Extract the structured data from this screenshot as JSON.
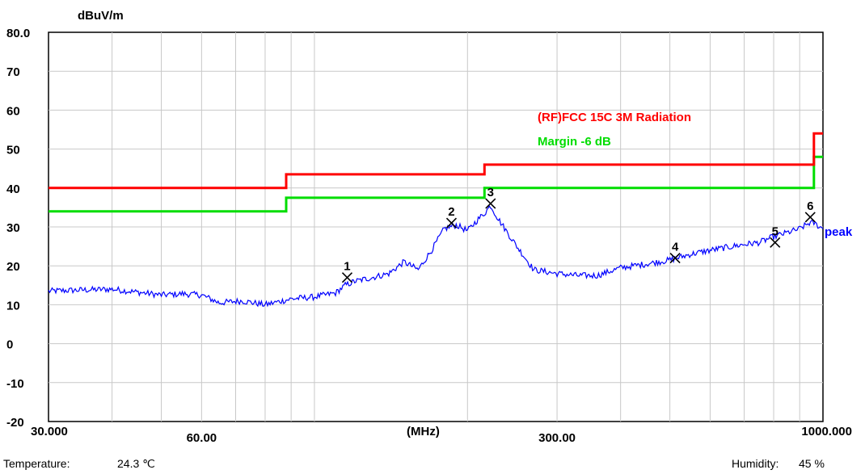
{
  "chart_data": {
    "type": "line",
    "title": "",
    "xlabel": "(MHz)",
    "ylabel": "dBuV/m",
    "x_scale": "log",
    "xlim": [
      30,
      1000
    ],
    "ylim": [
      -20,
      80
    ],
    "y_ticks": [
      "80.0",
      "70",
      "60",
      "50",
      "40",
      "30",
      "20",
      "10",
      "0",
      "-10",
      "-20"
    ],
    "x_ticks": [
      {
        "value": 30,
        "label": "30.000"
      },
      {
        "value": 60,
        "label": "60.00"
      },
      {
        "value": 300,
        "label": "300.00"
      },
      {
        "value": 1000,
        "label": "1000.000"
      }
    ],
    "x_gridlines": [
      40,
      50,
      60,
      70,
      80,
      90,
      100,
      200,
      300,
      400,
      500,
      600,
      700,
      800,
      900
    ],
    "grid": true,
    "limit_line": {
      "name": "(RF)FCC 15C 3M Radiation",
      "color": "#ff0000",
      "points": [
        [
          30,
          40
        ],
        [
          88,
          40
        ],
        [
          88,
          43.5
        ],
        [
          216,
          43.5
        ],
        [
          216,
          46
        ],
        [
          960,
          46
        ],
        [
          960,
          54
        ],
        [
          1000,
          54
        ]
      ]
    },
    "margin_line": {
      "name": "Margin -6 dB",
      "color": "#00dd00",
      "points": [
        [
          30,
          34
        ],
        [
          88,
          34
        ],
        [
          88,
          37.5
        ],
        [
          216,
          37.5
        ],
        [
          216,
          40
        ],
        [
          960,
          40
        ],
        [
          960,
          48
        ],
        [
          1000,
          48
        ]
      ]
    },
    "series": [
      {
        "name": "peak",
        "color": "#0000ff",
        "points": [
          [
            30,
            13.5
          ],
          [
            35,
            13.8
          ],
          [
            40,
            14
          ],
          [
            45,
            13.2
          ],
          [
            50,
            12.5
          ],
          [
            55,
            12.8
          ],
          [
            60,
            12.5
          ],
          [
            65,
            10.5
          ],
          [
            72,
            11
          ],
          [
            80,
            10
          ],
          [
            90,
            11.5
          ],
          [
            100,
            12
          ],
          [
            110,
            13
          ],
          [
            115,
            15
          ],
          [
            120,
            16
          ],
          [
            130,
            17
          ],
          [
            140,
            18
          ],
          [
            150,
            21
          ],
          [
            160,
            19
          ],
          [
            170,
            24
          ],
          [
            180,
            29.5
          ],
          [
            190,
            30.5
          ],
          [
            200,
            29
          ],
          [
            210,
            32
          ],
          [
            216,
            33.5
          ],
          [
            222,
            35.5
          ],
          [
            230,
            32
          ],
          [
            250,
            25
          ],
          [
            270,
            19
          ],
          [
            300,
            18
          ],
          [
            330,
            17.5
          ],
          [
            360,
            17.5
          ],
          [
            400,
            19.5
          ],
          [
            450,
            20.5
          ],
          [
            500,
            21.5
          ],
          [
            550,
            23
          ],
          [
            600,
            24
          ],
          [
            700,
            25.5
          ],
          [
            750,
            26
          ],
          [
            800,
            27.5
          ],
          [
            850,
            28.5
          ],
          [
            900,
            29.5
          ],
          [
            940,
            31
          ],
          [
            960,
            31
          ],
          [
            1000,
            29.5
          ]
        ]
      }
    ],
    "markers": [
      {
        "label": "1",
        "x": 116,
        "y": 17
      },
      {
        "label": "2",
        "x": 186,
        "y": 31
      },
      {
        "label": "3",
        "x": 222,
        "y": 36
      },
      {
        "label": "4",
        "x": 512,
        "y": 22
      },
      {
        "label": "5",
        "x": 805,
        "y": 26
      },
      {
        "label": "6",
        "x": 944,
        "y": 32.5
      }
    ],
    "legend_placement": "top-right"
  },
  "footer": {
    "temperature_label": "Temperature:",
    "temperature_value": "24.3 ℃",
    "humidity_label": "Humidity:",
    "humidity_value": "45 %"
  }
}
